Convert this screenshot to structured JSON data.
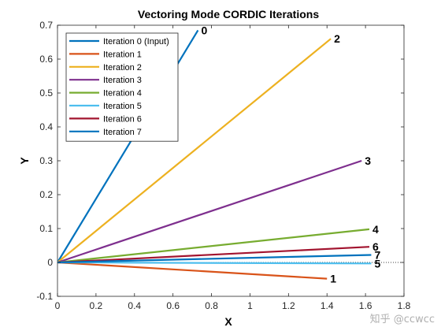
{
  "watermark": "知乎 @ccwcc",
  "chart_data": {
    "type": "line",
    "title": "Vectoring Mode CORDIC Iterations",
    "xlabel": "X",
    "ylabel": "Y",
    "xlim": [
      0,
      1.8
    ],
    "ylim": [
      -0.1,
      0.7
    ],
    "xticks": [
      "0",
      "0.2",
      "0.4",
      "0.6",
      "0.8",
      "1",
      "1.2",
      "1.4",
      "1.6",
      "1.8"
    ],
    "yticks": [
      "-0.1",
      "0",
      "0.1",
      "0.2",
      "0.3",
      "0.4",
      "0.5",
      "0.6",
      "0.7"
    ],
    "grid": false,
    "legend_position": "top-left",
    "reference_line": {
      "y": 0,
      "style": "dotted",
      "color": "#000000"
    },
    "series": [
      {
        "name": "Iteration 0 (Input)",
        "label": "0",
        "color": "#0072BD",
        "x": [
          0,
          0.73
        ],
        "y": [
          0,
          0.685
        ]
      },
      {
        "name": "Iteration 1",
        "label": "1",
        "color": "#D95319",
        "x": [
          0,
          1.4
        ],
        "y": [
          0,
          -0.048
        ]
      },
      {
        "name": "Iteration 2",
        "label": "2",
        "color": "#EDB120",
        "x": [
          0,
          1.42
        ],
        "y": [
          0,
          0.66
        ]
      },
      {
        "name": "Iteration 3",
        "label": "3",
        "color": "#7E2F8E",
        "x": [
          0,
          1.58
        ],
        "y": [
          0,
          0.3
        ]
      },
      {
        "name": "Iteration 4",
        "label": "4",
        "color": "#77AC30",
        "x": [
          0,
          1.62
        ],
        "y": [
          0,
          0.098
        ]
      },
      {
        "name": "Iteration 5",
        "label": "5",
        "color": "#4DBEEE",
        "x": [
          0,
          1.63
        ],
        "y": [
          0,
          -0.003
        ]
      },
      {
        "name": "Iteration 6",
        "label": "6",
        "color": "#A2142F",
        "x": [
          0,
          1.62
        ],
        "y": [
          0,
          0.046
        ]
      },
      {
        "name": "Iteration 7",
        "label": "7",
        "color": "#0072BD",
        "x": [
          0,
          1.63
        ],
        "y": [
          0,
          0.022
        ]
      }
    ]
  }
}
